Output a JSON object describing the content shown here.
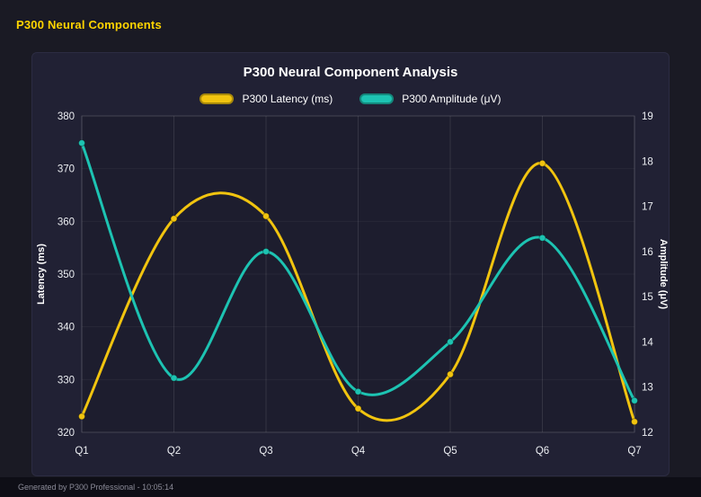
{
  "header": {
    "title": "P300 Neural Components"
  },
  "panel": {
    "title": "P300 Neural Component Analysis"
  },
  "footer": {
    "text": "Generated by P300 Professional - 10:05:14"
  },
  "colors": {
    "background": "#1a1a24",
    "panel": "#212134",
    "header_text": "#ffd400",
    "latency": "#f1c40f",
    "amplitude": "#1dc3b2",
    "axis_text": "#eceef2"
  },
  "chart_data": {
    "type": "line",
    "title": "P300 Neural Component Analysis",
    "categories": [
      "Q1",
      "Q2",
      "Q3",
      "Q4",
      "Q5",
      "Q6",
      "Q7"
    ],
    "series": [
      {
        "name": "P300 Latency (ms)",
        "axis": "left",
        "color": "#f1c40f",
        "values": [
          323,
          360.5,
          361,
          324.5,
          331,
          371,
          322
        ]
      },
      {
        "name": "P300 Amplitude (μV)",
        "axis": "right",
        "color": "#1dc3b2",
        "values": [
          18.4,
          13.2,
          16.0,
          12.9,
          14.0,
          16.3,
          12.7
        ]
      }
    ],
    "left_axis": {
      "label": "Latency (ms)",
      "min": 320,
      "max": 380,
      "ticks": [
        320,
        330,
        340,
        350,
        360,
        370,
        380
      ]
    },
    "right_axis": {
      "label": "Amplitude (μV)",
      "min": 12,
      "max": 19,
      "ticks": [
        12,
        13,
        14,
        15,
        16,
        17,
        18,
        19
      ]
    },
    "legend_position": "top",
    "grid": true,
    "smooth": true
  }
}
